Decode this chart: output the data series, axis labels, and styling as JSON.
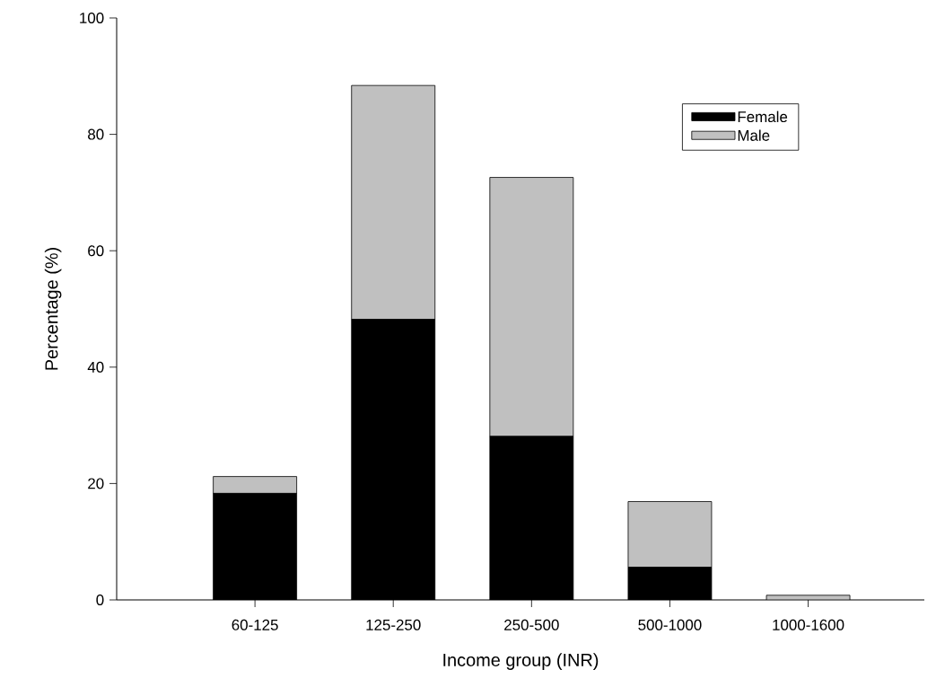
{
  "chart_data": {
    "type": "bar",
    "stacked": true,
    "xlabel": "Income group (INR)",
    "ylabel": "Percentage (%)",
    "categories": [
      "60-125",
      "125-250",
      "250-500",
      "500-1000",
      "1000-1600"
    ],
    "series": [
      {
        "name": "Female",
        "color": "#000000",
        "values": [
          18.3,
          48.2,
          28.1,
          5.6,
          0
        ]
      },
      {
        "name": "Male",
        "color": "#c0c0c0",
        "values": [
          2.9,
          40.2,
          44.5,
          11.3,
          0.8
        ]
      }
    ],
    "ylim": [
      0,
      100
    ],
    "yticks": [
      0,
      20,
      40,
      60,
      80,
      100
    ],
    "legend": "top right",
    "grid": false
  }
}
